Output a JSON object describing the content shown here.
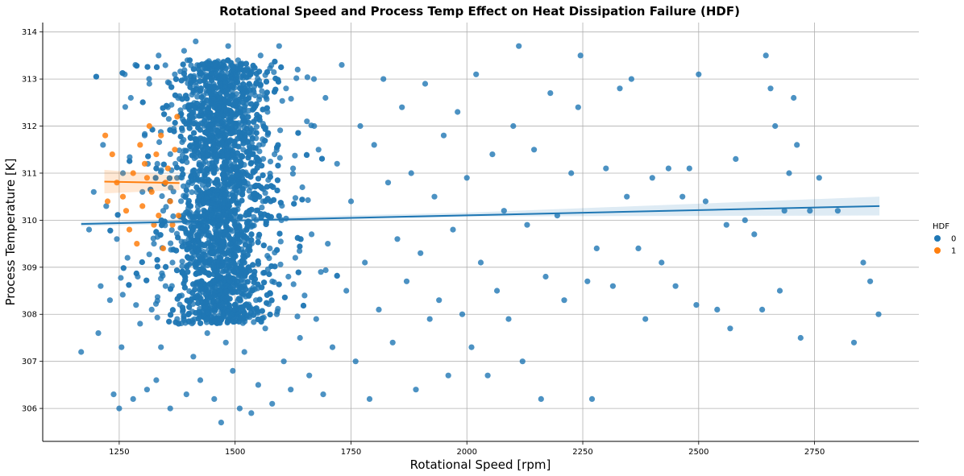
{
  "chart_data": {
    "type": "scatter",
    "title": "Rotational Speed and Process Temp Effect on Heat Dissipation Failure (HDF)",
    "xlabel": "Rotational Speed [rpm]",
    "ylabel": "Process Temperature [K]",
    "xlim": [
      1085,
      2975
    ],
    "ylim": [
      305.3,
      314.2
    ],
    "xticks": [
      1250,
      1500,
      1750,
      2000,
      2250,
      2500,
      2750
    ],
    "yticks": [
      306,
      307,
      308,
      309,
      310,
      311,
      312,
      313,
      314
    ],
    "grid": true,
    "legend": {
      "title": "HDF",
      "placement": "right",
      "entries": [
        "0",
        "1"
      ]
    },
    "series": [
      {
        "name": "0",
        "color": "#1f77b4",
        "regression": {
          "x": [
            1168,
            2890
          ],
          "y": [
            309.92,
            310.3
          ]
        },
        "points": [
          [
            1168,
            307.2
          ],
          [
            1185,
            309.8
          ],
          [
            1195,
            310.6
          ],
          [
            1205,
            307.6
          ],
          [
            1210,
            308.6
          ],
          [
            1215,
            311.6
          ],
          [
            1222,
            310.3
          ],
          [
            1230,
            308.3
          ],
          [
            1238,
            306.3
          ],
          [
            1245,
            309.6
          ],
          [
            1250,
            306.0
          ],
          [
            1255,
            307.3
          ],
          [
            1258,
            311.0
          ],
          [
            1262,
            313.1
          ],
          [
            1268,
            309.2
          ],
          [
            1275,
            312.6
          ],
          [
            1280,
            306.2
          ],
          [
            1285,
            313.3
          ],
          [
            1290,
            308.8
          ],
          [
            1295,
            307.8
          ],
          [
            1300,
            310.6
          ],
          [
            1305,
            311.8
          ],
          [
            1310,
            306.4
          ],
          [
            1315,
            312.9
          ],
          [
            1320,
            308.1
          ],
          [
            1325,
            309.5
          ],
          [
            1330,
            306.6
          ],
          [
            1335,
            313.5
          ],
          [
            1340,
            307.3
          ],
          [
            1345,
            310.2
          ],
          [
            1350,
            308.6
          ],
          [
            1355,
            312.4
          ],
          [
            1360,
            306.0
          ],
          [
            1365,
            309.1
          ],
          [
            1370,
            313.1
          ],
          [
            1375,
            307.9
          ],
          [
            1380,
            311.3
          ],
          [
            1385,
            308.4
          ],
          [
            1390,
            313.6
          ],
          [
            1395,
            306.3
          ],
          [
            1400,
            309.6
          ],
          [
            1405,
            312.2
          ],
          [
            1410,
            307.1
          ],
          [
            1415,
            313.8
          ],
          [
            1420,
            308.9
          ],
          [
            1425,
            306.6
          ],
          [
            1430,
            311.7
          ],
          [
            1435,
            310.1
          ],
          [
            1440,
            307.6
          ],
          [
            1445,
            312.9
          ],
          [
            1450,
            309.3
          ],
          [
            1455,
            306.2
          ],
          [
            1460,
            313.3
          ],
          [
            1465,
            308.2
          ],
          [
            1470,
            305.7
          ],
          [
            1475,
            311.0
          ],
          [
            1480,
            307.4
          ],
          [
            1485,
            313.7
          ],
          [
            1490,
            309.8
          ],
          [
            1495,
            306.8
          ],
          [
            1500,
            312.5
          ],
          [
            1505,
            308.6
          ],
          [
            1510,
            306.0
          ],
          [
            1515,
            310.9
          ],
          [
            1520,
            307.2
          ],
          [
            1525,
            313.2
          ],
          [
            1530,
            309.0
          ],
          [
            1535,
            305.9
          ],
          [
            1540,
            311.9
          ],
          [
            1545,
            308.3
          ],
          [
            1550,
            306.5
          ],
          [
            1555,
            313.5
          ],
          [
            1560,
            310.4
          ],
          [
            1565,
            307.7
          ],
          [
            1570,
            312.3
          ],
          [
            1575,
            309.4
          ],
          [
            1580,
            306.1
          ],
          [
            1585,
            311.4
          ],
          [
            1590,
            308.0
          ],
          [
            1595,
            313.7
          ],
          [
            1600,
            310.0
          ],
          [
            1605,
            307.0
          ],
          [
            1610,
            312.8
          ],
          [
            1615,
            308.8
          ],
          [
            1620,
            306.4
          ],
          [
            1625,
            311.1
          ],
          [
            1630,
            309.2
          ],
          [
            1635,
            313.2
          ],
          [
            1640,
            307.5
          ],
          [
            1645,
            310.7
          ],
          [
            1650,
            308.4
          ],
          [
            1655,
            312.1
          ],
          [
            1660,
            306.7
          ],
          [
            1665,
            309.7
          ],
          [
            1670,
            313.0
          ],
          [
            1675,
            307.9
          ],
          [
            1680,
            311.5
          ],
          [
            1685,
            308.9
          ],
          [
            1690,
            306.3
          ],
          [
            1695,
            312.6
          ],
          [
            1700,
            309.5
          ],
          [
            1710,
            307.3
          ],
          [
            1720,
            311.2
          ],
          [
            1730,
            313.3
          ],
          [
            1740,
            308.5
          ],
          [
            1750,
            310.4
          ],
          [
            1760,
            307.0
          ],
          [
            1770,
            312.0
          ],
          [
            1780,
            309.1
          ],
          [
            1790,
            306.2
          ],
          [
            1800,
            311.6
          ],
          [
            1810,
            308.1
          ],
          [
            1820,
            313.0
          ],
          [
            1830,
            310.8
          ],
          [
            1840,
            307.4
          ],
          [
            1850,
            309.6
          ],
          [
            1860,
            312.4
          ],
          [
            1870,
            308.7
          ],
          [
            1880,
            311.0
          ],
          [
            1890,
            306.4
          ],
          [
            1900,
            309.3
          ],
          [
            1910,
            312.9
          ],
          [
            1920,
            307.9
          ],
          [
            1930,
            310.5
          ],
          [
            1940,
            308.3
          ],
          [
            1950,
            311.8
          ],
          [
            1960,
            306.7
          ],
          [
            1970,
            309.8
          ],
          [
            1980,
            312.3
          ],
          [
            1990,
            308.0
          ],
          [
            2000,
            310.9
          ],
          [
            2010,
            307.3
          ],
          [
            2020,
            313.1
          ],
          [
            2030,
            309.1
          ],
          [
            2045,
            306.7
          ],
          [
            2055,
            311.4
          ],
          [
            2065,
            308.5
          ],
          [
            2080,
            310.2
          ],
          [
            2090,
            307.9
          ],
          [
            2100,
            312.0
          ],
          [
            2112,
            313.7
          ],
          [
            2120,
            307.0
          ],
          [
            2130,
            309.9
          ],
          [
            2145,
            311.5
          ],
          [
            2160,
            306.2
          ],
          [
            2170,
            308.8
          ],
          [
            2180,
            312.7
          ],
          [
            2195,
            310.1
          ],
          [
            2210,
            308.3
          ],
          [
            2225,
            311.0
          ],
          [
            2240,
            312.4
          ],
          [
            2245,
            313.5
          ],
          [
            2260,
            308.7
          ],
          [
            2270,
            306.2
          ],
          [
            2280,
            309.4
          ],
          [
            2300,
            311.1
          ],
          [
            2315,
            308.6
          ],
          [
            2330,
            312.8
          ],
          [
            2345,
            310.5
          ],
          [
            2355,
            313.0
          ],
          [
            2370,
            309.4
          ],
          [
            2385,
            307.9
          ],
          [
            2400,
            310.9
          ],
          [
            2420,
            309.1
          ],
          [
            2435,
            311.1
          ],
          [
            2450,
            308.6
          ],
          [
            2465,
            310.5
          ],
          [
            2480,
            311.1
          ],
          [
            2495,
            308.2
          ],
          [
            2500,
            313.1
          ],
          [
            2515,
            310.4
          ],
          [
            2540,
            308.1
          ],
          [
            2560,
            309.9
          ],
          [
            2568,
            307.7
          ],
          [
            2580,
            311.3
          ],
          [
            2600,
            310.0
          ],
          [
            2620,
            309.7
          ],
          [
            2637,
            308.1
          ],
          [
            2645,
            313.5
          ],
          [
            2655,
            312.8
          ],
          [
            2665,
            312.0
          ],
          [
            2675,
            308.5
          ],
          [
            2685,
            310.2
          ],
          [
            2695,
            311.0
          ],
          [
            2705,
            312.6
          ],
          [
            2712,
            311.6
          ],
          [
            2720,
            307.5
          ],
          [
            2740,
            310.2
          ],
          [
            2760,
            310.9
          ],
          [
            2800,
            310.2
          ],
          [
            2835,
            307.4
          ],
          [
            2855,
            309.1
          ],
          [
            2870,
            308.7
          ],
          [
            2888,
            308.0
          ]
        ]
      },
      {
        "name": "1",
        "color": "#ff7f0e",
        "regression": {
          "x": [
            1218,
            1380
          ],
          "y": [
            310.82,
            310.79
          ]
        },
        "points": [
          [
            1220,
            311.8
          ],
          [
            1225,
            310.4
          ],
          [
            1235,
            311.4
          ],
          [
            1245,
            310.8
          ],
          [
            1258,
            310.5
          ],
          [
            1265,
            310.2
          ],
          [
            1272,
            309.8
          ],
          [
            1280,
            311.0
          ],
          [
            1288,
            309.5
          ],
          [
            1295,
            311.6
          ],
          [
            1300,
            310.3
          ],
          [
            1305,
            311.2
          ],
          [
            1310,
            310.9
          ],
          [
            1315,
            312.0
          ],
          [
            1320,
            310.6
          ],
          [
            1325,
            309.9
          ],
          [
            1330,
            311.4
          ],
          [
            1335,
            310.1
          ],
          [
            1340,
            311.8
          ],
          [
            1345,
            309.4
          ],
          [
            1350,
            310.8
          ],
          [
            1355,
            311.1
          ],
          [
            1360,
            310.4
          ],
          [
            1365,
            309.9
          ],
          [
            1370,
            311.5
          ],
          [
            1375,
            312.2
          ],
          [
            1378,
            310.1
          ]
        ]
      }
    ]
  }
}
